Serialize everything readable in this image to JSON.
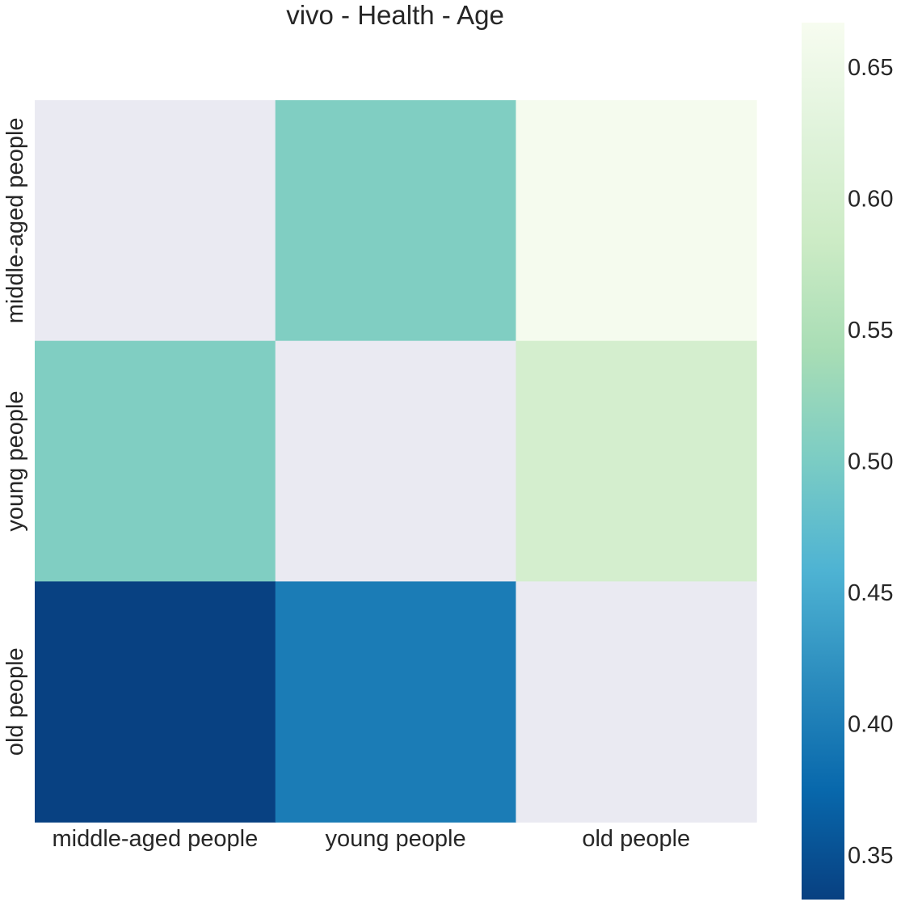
{
  "chart_data": {
    "type": "heatmap",
    "title": "vivo - Health - Age",
    "xlabel": "",
    "ylabel": "",
    "x_categories": [
      "middle-aged people",
      "young people",
      "old people"
    ],
    "y_categories": [
      "middle-aged people",
      "young people",
      "old people"
    ],
    "values": [
      [
        null,
        0.505,
        0.663
      ],
      [
        0.505,
        null,
        0.601
      ],
      [
        0.334,
        0.398,
        null
      ]
    ],
    "missing_color": "#eaeaf2",
    "colormap": "GnBu_r",
    "colorbar": {
      "min": 0.333,
      "max": 0.667,
      "ticks": [
        0.35,
        0.4,
        0.45,
        0.5,
        0.55,
        0.6,
        0.65
      ],
      "tick_labels": [
        "0.35",
        "0.40",
        "0.45",
        "0.50",
        "0.55",
        "0.60",
        "0.65"
      ],
      "stops": [
        "#084081",
        "#0868ac",
        "#2b8cbe",
        "#4eb3d3",
        "#7bccc4",
        "#a8ddb5",
        "#ccebc5",
        "#e0f3db",
        "#f7fcf0"
      ]
    }
  }
}
